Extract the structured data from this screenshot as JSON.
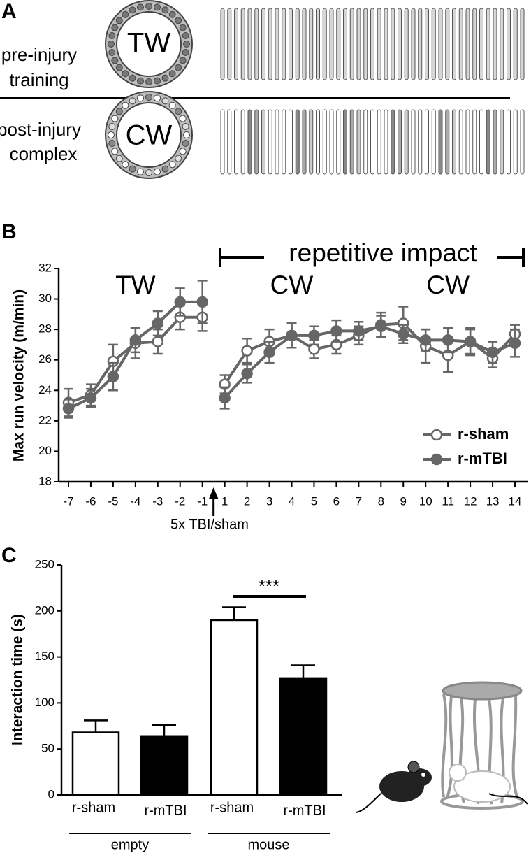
{
  "diagram": {
    "label": "A",
    "rows": [
      {
        "text": [
          "pre-injury",
          "training"
        ],
        "wheel": "TW"
      },
      {
        "text": [
          "post-injury",
          "complex"
        ],
        "wheel": "CW"
      }
    ]
  },
  "chart_data": [
    {
      "type": "line",
      "label": "B",
      "y_label": "Max run velocity (m/min)",
      "categories": [
        "-7",
        "-6",
        "-5",
        "-4",
        "-3",
        "-2",
        "-1",
        "1",
        "2",
        "3",
        "4",
        "5",
        "6",
        "7",
        "8",
        "9",
        "10",
        "11",
        "12",
        "13",
        "14"
      ],
      "break_after": "-1",
      "annotations": {
        "bracket": "repetitive impact",
        "phases": [
          "TW",
          "CW",
          "CW"
        ],
        "arrow": "5x TBI/sham"
      },
      "ylim": [
        18,
        32
      ],
      "yticks": [
        18,
        20,
        22,
        24,
        26,
        28,
        30,
        32
      ],
      "legend": "lower right",
      "series": [
        {
          "name": "r-sham",
          "color": "#666666",
          "marker": "open",
          "values": [
            23.2,
            23.7,
            25.9,
            27.1,
            27.2,
            28.8,
            28.8,
            24.4,
            26.6,
            27.2,
            27.6,
            26.7,
            27.0,
            27.6,
            28.3,
            28.4,
            26.9,
            26.3,
            27.2,
            26.1,
            27.7
          ],
          "errors": [
            0.9,
            0.7,
            1.1,
            1.0,
            0.8,
            0.8,
            0.9,
            0.6,
            0.8,
            0.8,
            0.8,
            0.6,
            0.6,
            0.6,
            0.8,
            1.1,
            1.1,
            1.1,
            0.9,
            0.6,
            0.6
          ]
        },
        {
          "name": "r-mTBI",
          "color": "#666666",
          "marker": "filled",
          "values": [
            22.8,
            23.5,
            24.9,
            27.3,
            28.4,
            29.8,
            29.8,
            23.5,
            25.1,
            26.5,
            27.6,
            27.6,
            27.9,
            27.9,
            28.2,
            27.7,
            27.3,
            27.3,
            27.2,
            26.5,
            27.1
          ],
          "errors": [
            0.6,
            0.6,
            0.9,
            0.8,
            0.8,
            0.9,
            1.4,
            0.7,
            0.6,
            0.7,
            0.8,
            0.6,
            0.7,
            0.6,
            0.7,
            0.6,
            0.7,
            0.8,
            0.8,
            0.7,
            0.9
          ]
        }
      ]
    },
    {
      "type": "bar",
      "label": "C",
      "y_label": "Interaction time (s)",
      "categories": [
        "r-sham",
        "r-mTBI",
        "r-sham",
        "r-mTBI"
      ],
      "group_labels": [
        "empty",
        "mouse"
      ],
      "values": [
        68,
        64,
        190,
        127
      ],
      "errors": [
        13,
        12,
        14,
        14
      ],
      "colors": [
        "#ffffff",
        "#000000",
        "#ffffff",
        "#000000"
      ],
      "significance": "***",
      "ylim": [
        0,
        250
      ],
      "yticks": [
        0,
        50,
        100,
        150,
        200,
        250
      ]
    }
  ]
}
